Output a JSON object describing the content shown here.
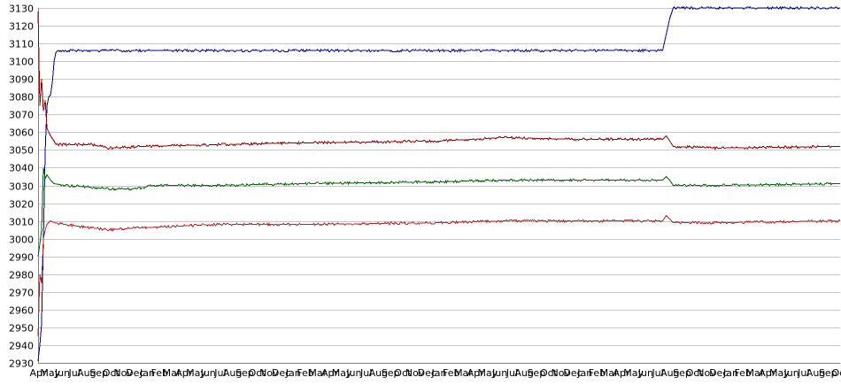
{
  "chart_data": {
    "type": "line",
    "title": "",
    "xlabel": "",
    "ylabel": "",
    "ylim": [
      2930,
      3130
    ],
    "grid": "horizontal",
    "y_ticks": [
      3130,
      3120,
      3110,
      3100,
      3090,
      3080,
      3070,
      3060,
      3050,
      3040,
      3030,
      3020,
      3010,
      3000,
      2990,
      2980,
      2970,
      2960,
      2950,
      2940,
      2930
    ],
    "x_tick_labels": [
      "Apr",
      "May",
      "Jun",
      "Jul",
      "Aug",
      "Sep",
      "Oct",
      "Nov",
      "Dec",
      "Jan",
      "Feb",
      "Mar",
      "Apr",
      "May",
      "Jun",
      "Jul",
      "Aug",
      "Sep",
      "Oct",
      "Nov",
      "Dec",
      "Jan",
      "Feb",
      "Mar",
      "Apr",
      "May",
      "Jun",
      "Jul",
      "Aug",
      "Sep",
      "Oct",
      "Nov",
      "Dec",
      "Jan",
      "Feb",
      "Mar",
      "Apr",
      "May",
      "Jun",
      "Jul",
      "Aug",
      "Sep",
      "Oct",
      "Nov",
      "Dec",
      "Jan",
      "Feb",
      "Mar",
      "Apr",
      "May",
      "Jun",
      "Jul",
      "Aug",
      "Sep",
      "Oct",
      "Nov",
      "Dec",
      "Jan",
      "Feb",
      "Mar",
      "Apr",
      "May",
      "Jun",
      "Jul",
      "Aug",
      "Sep",
      "Oct"
    ],
    "x_count": 900,
    "series": [
      {
        "color": "#00008b",
        "points": [
          [
            0,
            2931
          ],
          [
            2,
            2940
          ],
          [
            4,
            2952
          ],
          [
            6,
            3000
          ],
          [
            8,
            3050
          ],
          [
            10,
            3075
          ],
          [
            12,
            3080
          ],
          [
            14,
            3081
          ],
          [
            16,
            3088
          ],
          [
            18,
            3100
          ],
          [
            20,
            3105
          ],
          [
            22,
            3106
          ],
          [
            700,
            3106
          ],
          [
            704,
            3115
          ],
          [
            708,
            3124
          ],
          [
            712,
            3130
          ],
          [
            899,
            3130
          ]
        ]
      },
      {
        "color": "#8b0000",
        "points": [
          [
            0,
            3128
          ],
          [
            2,
            3075
          ],
          [
            4,
            3090
          ],
          [
            6,
            3072
          ],
          [
            8,
            3078
          ],
          [
            10,
            3062
          ],
          [
            14,
            3058
          ],
          [
            18,
            3055
          ],
          [
            20,
            3053
          ],
          [
            60,
            3053
          ],
          [
            80,
            3051
          ],
          [
            120,
            3052
          ],
          [
            200,
            3053
          ],
          [
            300,
            3054
          ],
          [
            450,
            3055
          ],
          [
            520,
            3057
          ],
          [
            600,
            3056
          ],
          [
            700,
            3056
          ],
          [
            704,
            3058
          ],
          [
            708,
            3055
          ],
          [
            712,
            3052
          ],
          [
            760,
            3051
          ],
          [
            899,
            3052
          ]
        ]
      },
      {
        "color": "#006400",
        "points": [
          [
            0,
            2990
          ],
          [
            2,
            2997
          ],
          [
            4,
            3005
          ],
          [
            6,
            3040
          ],
          [
            8,
            3034
          ],
          [
            10,
            3036
          ],
          [
            14,
            3033
          ],
          [
            18,
            3031
          ],
          [
            30,
            3030
          ],
          [
            60,
            3029
          ],
          [
            80,
            3028
          ],
          [
            110,
            3028
          ],
          [
            130,
            3030
          ],
          [
            200,
            3030
          ],
          [
            300,
            3031
          ],
          [
            450,
            3032
          ],
          [
            520,
            3033
          ],
          [
            600,
            3033
          ],
          [
            700,
            3033
          ],
          [
            704,
            3035
          ],
          [
            708,
            3033
          ],
          [
            712,
            3030
          ],
          [
            760,
            3030
          ],
          [
            899,
            3031
          ]
        ]
      },
      {
        "color": "#b22222",
        "points": [
          [
            0,
            2945
          ],
          [
            2,
            2980
          ],
          [
            4,
            2975
          ],
          [
            6,
            3000
          ],
          [
            8,
            3005
          ],
          [
            10,
            3008
          ],
          [
            14,
            3010
          ],
          [
            18,
            3009
          ],
          [
            30,
            3008
          ],
          [
            60,
            3006
          ],
          [
            80,
            3005
          ],
          [
            110,
            3006
          ],
          [
            200,
            3008
          ],
          [
            300,
            3008
          ],
          [
            450,
            3009
          ],
          [
            520,
            3010
          ],
          [
            600,
            3010
          ],
          [
            700,
            3010
          ],
          [
            704,
            3013
          ],
          [
            708,
            3011
          ],
          [
            712,
            3009
          ],
          [
            760,
            3009
          ],
          [
            899,
            3010
          ]
        ]
      }
    ]
  }
}
